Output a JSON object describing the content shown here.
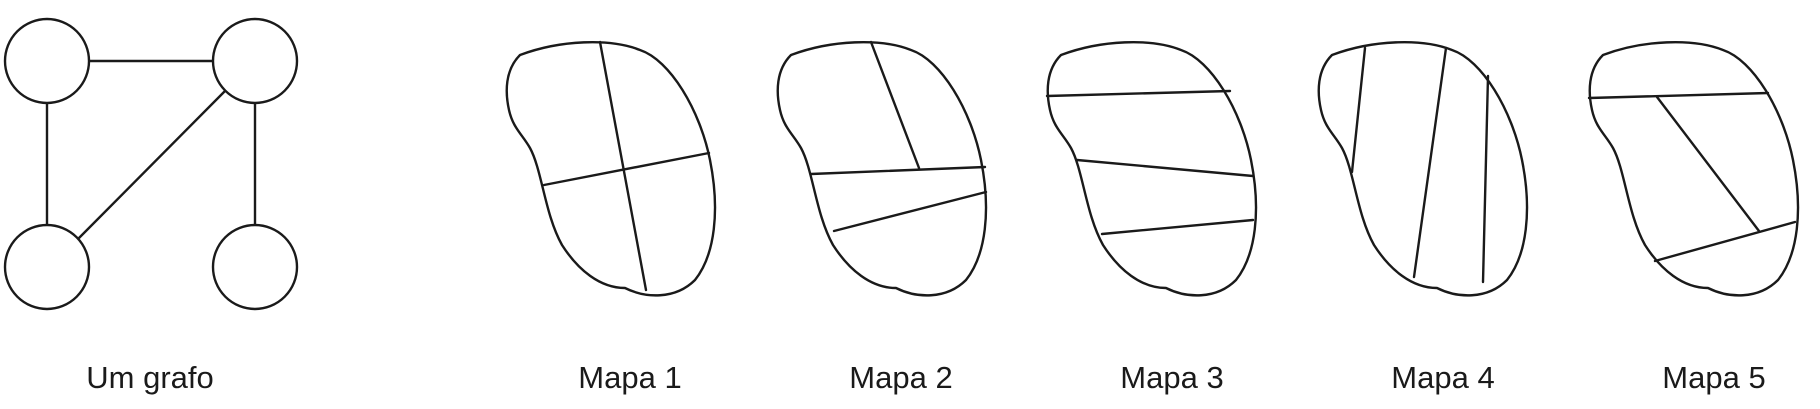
{
  "figure": {
    "captions": {
      "graph": "Um grafo",
      "map1": "Mapa 1",
      "map2": "Mapa 2",
      "map3": "Mapa 3",
      "map4": "Mapa 4",
      "map5": "Mapa 5"
    }
  },
  "graph": {
    "nodes": [
      "top-left",
      "top-right",
      "bottom-left",
      "bottom-right"
    ],
    "edges": [
      [
        "top-left",
        "top-right"
      ],
      [
        "top-left",
        "bottom-left"
      ],
      [
        "top-right",
        "bottom-left"
      ],
      [
        "top-right",
        "bottom-right"
      ]
    ]
  },
  "colors": {
    "stroke": "#1a1a1a",
    "background": "#ffffff"
  }
}
